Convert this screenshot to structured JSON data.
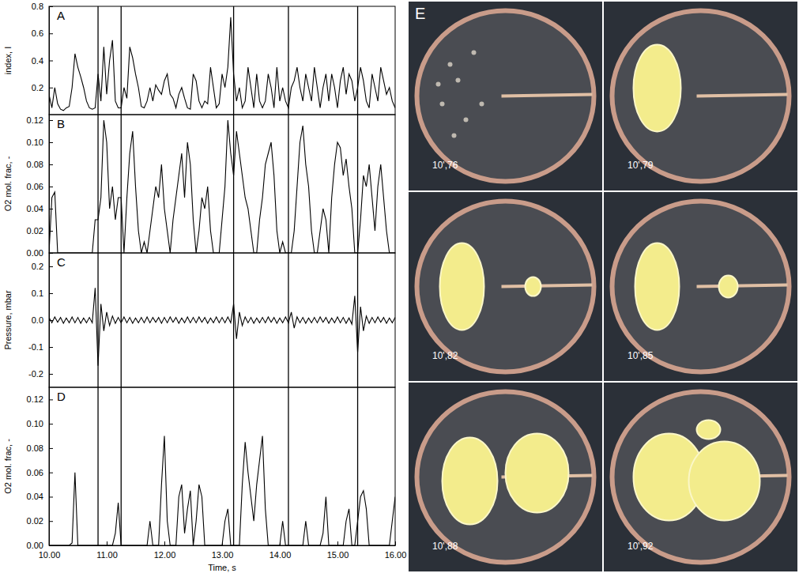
{
  "chart_data": [
    {
      "type": "line",
      "panel": "A",
      "ylabel": "index, I",
      "color": "#000000",
      "tick_labels": "y",
      "xlim": [
        10,
        16
      ],
      "ylim": [
        0,
        0.8
      ],
      "yticks": [
        0.2,
        0.4,
        0.6,
        0.8
      ],
      "vlines": [
        10.85,
        11.25,
        13.2,
        14.15,
        15.35
      ],
      "x": [
        10,
        10.05,
        10.1,
        10.15,
        10.2,
        10.25,
        10.3,
        10.35,
        10.4,
        10.45,
        10.5,
        10.55,
        10.6,
        10.65,
        10.7,
        10.75,
        10.8,
        10.85,
        10.9,
        10.95,
        11,
        11.05,
        11.1,
        11.15,
        11.2,
        11.25,
        11.3,
        11.35,
        11.4,
        11.45,
        11.5,
        11.55,
        11.6,
        11.65,
        11.7,
        11.75,
        11.8,
        11.85,
        11.9,
        11.95,
        12,
        12.05,
        12.1,
        12.15,
        12.2,
        12.25,
        12.3,
        12.35,
        12.4,
        12.45,
        12.5,
        12.55,
        12.6,
        12.65,
        12.7,
        12.75,
        12.8,
        12.85,
        12.9,
        12.95,
        13,
        13.05,
        13.1,
        13.15,
        13.2,
        13.25,
        13.3,
        13.35,
        13.4,
        13.45,
        13.5,
        13.55,
        13.6,
        13.65,
        13.7,
        13.75,
        13.8,
        13.85,
        13.9,
        13.95,
        14,
        14.05,
        14.1,
        14.15,
        14.2,
        14.25,
        14.3,
        14.35,
        14.4,
        14.45,
        14.5,
        14.55,
        14.6,
        14.65,
        14.7,
        14.75,
        14.8,
        14.85,
        14.9,
        14.95,
        15,
        15.05,
        15.1,
        15.15,
        15.2,
        15.25,
        15.3,
        15.35,
        15.4,
        15.45,
        15.5,
        15.55,
        15.6,
        15.65,
        15.7,
        15.75,
        15.8,
        15.85,
        15.9,
        15.95,
        16
      ],
      "values": [
        0.15,
        0.05,
        0.2,
        0.08,
        0.04,
        0.03,
        0.05,
        0.06,
        0.2,
        0.45,
        0.35,
        0.28,
        0.2,
        0.1,
        0.05,
        0.04,
        0.05,
        0.3,
        0.1,
        0.5,
        0.15,
        0.4,
        0.55,
        0.1,
        0.05,
        0.05,
        0.2,
        0.12,
        0.5,
        0.42,
        0.3,
        0.2,
        0.06,
        0.05,
        0.1,
        0.2,
        0.1,
        0.22,
        0.18,
        0.15,
        0.25,
        0.3,
        0.15,
        0.12,
        0.05,
        0.15,
        0.2,
        0.12,
        0.05,
        0.04,
        0.3,
        0.25,
        0.1,
        0.05,
        0.1,
        0.08,
        0.35,
        0.2,
        0.05,
        0.08,
        0.3,
        0.2,
        0.35,
        0.72,
        0.3,
        0.1,
        0.2,
        0.05,
        0.1,
        0.35,
        0.2,
        0.05,
        0.3,
        0.1,
        0.05,
        0.1,
        0.3,
        0.2,
        0.05,
        0.35,
        0.1,
        0.2,
        0.1,
        0.05,
        0.2,
        0.25,
        0.35,
        0.2,
        0.1,
        0.3,
        0.2,
        0.1,
        0.35,
        0.2,
        0.05,
        0.2,
        0.3,
        0.1,
        0.3,
        0.2,
        0.05,
        0.25,
        0.35,
        0.15,
        0.3,
        0.25,
        0.1,
        0.2,
        0.35,
        0.25,
        0.1,
        0.05,
        0.3,
        0.2,
        0.1,
        0.35,
        0.25,
        0.15,
        0.2,
        0.1,
        0.05
      ]
    },
    {
      "type": "line",
      "panel": "B",
      "ylabel": "O2 mol. frac, -",
      "color": "#000000",
      "tick_labels": "y",
      "xlim": [
        10,
        16
      ],
      "ylim": [
        0,
        0.125
      ],
      "yticks": [
        {
          "value": 0,
          "label": "0.00"
        },
        {
          "value": 0.02,
          "label": "0.02"
        },
        {
          "value": 0.04,
          "label": "0.04"
        },
        {
          "value": 0.06,
          "label": "0.06"
        },
        {
          "value": 0.08,
          "label": "0.08"
        },
        {
          "value": 0.1,
          "label": "0.10"
        },
        {
          "value": 0.12,
          "label": "0.12"
        }
      ],
      "vlines": [
        10.85,
        11.25,
        13.2,
        14.15,
        15.35
      ],
      "x": [
        10,
        10.05,
        10.1,
        10.15,
        10.2,
        10.25,
        10.3,
        10.35,
        10.4,
        10.45,
        10.5,
        10.55,
        10.6,
        10.65,
        10.7,
        10.75,
        10.8,
        10.85,
        10.9,
        10.95,
        11,
        11.05,
        11.1,
        11.15,
        11.2,
        11.25,
        11.3,
        11.35,
        11.4,
        11.45,
        11.5,
        11.55,
        11.6,
        11.65,
        11.7,
        11.75,
        11.8,
        11.85,
        11.9,
        11.95,
        12,
        12.05,
        12.1,
        12.15,
        12.2,
        12.25,
        12.3,
        12.35,
        12.4,
        12.45,
        12.5,
        12.55,
        12.6,
        12.65,
        12.7,
        12.75,
        12.8,
        12.85,
        12.9,
        12.95,
        13,
        13.05,
        13.1,
        13.15,
        13.2,
        13.25,
        13.3,
        13.35,
        13.4,
        13.45,
        13.5,
        13.55,
        13.6,
        13.65,
        13.7,
        13.75,
        13.8,
        13.85,
        13.9,
        13.95,
        14,
        14.05,
        14.1,
        14.15,
        14.2,
        14.25,
        14.3,
        14.35,
        14.4,
        14.45,
        14.5,
        14.55,
        14.6,
        14.65,
        14.7,
        14.75,
        14.8,
        14.85,
        14.9,
        14.95,
        15,
        15.05,
        15.1,
        15.15,
        15.2,
        15.25,
        15.3,
        15.35,
        15.4,
        15.45,
        15.5,
        15.55,
        15.6,
        15.65,
        15.7,
        15.75,
        15.8,
        15.85,
        15.9,
        15.95,
        16
      ],
      "values": [
        0,
        0.05,
        0.055,
        0,
        0,
        0,
        0,
        0,
        0,
        0,
        0,
        0,
        0,
        0,
        0,
        0,
        0.03,
        0.03,
        0.05,
        0.12,
        0.1,
        0.04,
        0.06,
        0.03,
        0.05,
        0.05,
        0,
        0.05,
        0.09,
        0.11,
        0.06,
        0.02,
        0,
        0.01,
        0,
        0.02,
        0.04,
        0.06,
        0.05,
        0.08,
        0.04,
        0.02,
        0,
        0.03,
        0.05,
        0.07,
        0.09,
        0.05,
        0.1,
        0.08,
        0.03,
        0,
        0.02,
        0.05,
        0.04,
        0.06,
        0.02,
        0,
        0,
        0,
        0.03,
        0.06,
        0.12,
        0.09,
        0.07,
        0.11,
        0.09,
        0.07,
        0.05,
        0.04,
        0.02,
        0,
        0,
        0.03,
        0.05,
        0.08,
        0.09,
        0.1,
        0.07,
        0.02,
        0,
        0.01,
        0,
        0,
        0,
        0.02,
        0.06,
        0.1,
        0.115,
        0.08,
        0.06,
        0.02,
        0,
        0,
        0.02,
        0.04,
        0.03,
        0,
        0.05,
        0.08,
        0.1,
        0.095,
        0.07,
        0.085,
        0.06,
        0.04,
        0,
        0,
        0.03,
        0.07,
        0.06,
        0.08,
        0.05,
        0.02,
        0.06,
        0.08,
        0.05,
        0.02,
        0,
        0,
        0
      ]
    },
    {
      "type": "line",
      "panel": "C",
      "ylabel": "Pressure, mbar",
      "color": "#000000",
      "tick_labels": "y",
      "xlim": [
        10,
        16
      ],
      "ylim": [
        -0.25,
        0.25
      ],
      "yticks": [
        -0.2,
        -0.1,
        {
          "value": 0,
          "label": "0.0"
        },
        0.1,
        0.2
      ],
      "vlines": [
        10.85,
        11.25,
        13.2,
        14.15,
        15.35
      ],
      "x": [
        10,
        10.05,
        10.1,
        10.15,
        10.2,
        10.25,
        10.3,
        10.35,
        10.4,
        10.45,
        10.5,
        10.55,
        10.6,
        10.65,
        10.7,
        10.75,
        10.8,
        10.85,
        10.9,
        10.95,
        11,
        11.05,
        11.1,
        11.15,
        11.2,
        11.25,
        11.3,
        11.35,
        11.4,
        11.45,
        11.5,
        11.55,
        11.6,
        11.65,
        11.7,
        11.75,
        11.8,
        11.85,
        11.9,
        11.95,
        12,
        12.05,
        12.1,
        12.15,
        12.2,
        12.25,
        12.3,
        12.35,
        12.4,
        12.45,
        12.5,
        12.55,
        12.6,
        12.65,
        12.7,
        12.75,
        12.8,
        12.85,
        12.9,
        12.95,
        13,
        13.05,
        13.1,
        13.15,
        13.2,
        13.25,
        13.3,
        13.35,
        13.4,
        13.45,
        13.5,
        13.55,
        13.6,
        13.65,
        13.7,
        13.75,
        13.8,
        13.85,
        13.9,
        13.95,
        14,
        14.05,
        14.1,
        14.15,
        14.2,
        14.25,
        14.3,
        14.35,
        14.4,
        14.45,
        14.5,
        14.55,
        14.6,
        14.65,
        14.7,
        14.75,
        14.8,
        14.85,
        14.9,
        14.95,
        15,
        15.05,
        15.1,
        15.15,
        15.2,
        15.25,
        15.3,
        15.35,
        15.4,
        15.45,
        15.5,
        15.55,
        15.6,
        15.65,
        15.7,
        15.75,
        15.8,
        15.85,
        15.9,
        15.95,
        16
      ],
      "values": [
        0.01,
        -0.01,
        0.012,
        -0.008,
        0.01,
        -0.012,
        0.008,
        -0.01,
        0.012,
        -0.01,
        0.01,
        -0.012,
        0.008,
        -0.01,
        0.01,
        -0.01,
        0.12,
        -0.17,
        0.06,
        -0.04,
        0.03,
        -0.02,
        0.015,
        -0.012,
        0.01,
        -0.01,
        0.012,
        -0.01,
        0.01,
        -0.012,
        0.008,
        -0.01,
        0.01,
        -0.01,
        0.012,
        -0.01,
        0.01,
        -0.008,
        0.01,
        -0.012,
        0.01,
        -0.01,
        0.012,
        -0.008,
        0.01,
        -0.012,
        0.008,
        -0.01,
        0.012,
        -0.01,
        0.01,
        -0.01,
        0.012,
        -0.008,
        0.01,
        -0.012,
        0.008,
        -0.01,
        0.012,
        -0.01,
        0.01,
        -0.01,
        0.012,
        -0.01,
        0.06,
        -0.07,
        0.03,
        -0.02,
        0.012,
        -0.01,
        0.01,
        -0.012,
        0.008,
        -0.01,
        0.01,
        -0.01,
        0.012,
        -0.008,
        0.01,
        -0.012,
        0.008,
        -0.01,
        0.012,
        -0.01,
        0.03,
        -0.03,
        0.012,
        -0.01,
        0.01,
        -0.012,
        0.008,
        -0.01,
        0.01,
        -0.01,
        0.012,
        -0.008,
        0.01,
        -0.012,
        0.008,
        -0.01,
        0.012,
        -0.01,
        0.01,
        -0.012,
        0.008,
        -0.015,
        0.09,
        -0.12,
        0.05,
        -0.04,
        0.015,
        -0.012,
        0.01,
        -0.01,
        0.012,
        -0.008,
        0.01,
        -0.012,
        0.008,
        -0.01,
        0.01
      ]
    },
    {
      "type": "line",
      "panel": "D",
      "ylabel": "O2 mol. frac, -",
      "xlabel": "Time, s",
      "color": "#000000",
      "xlim": [
        10,
        16
      ],
      "ylim": [
        0,
        0.13
      ],
      "xticks": [
        {
          "value": 10,
          "label": "10.00"
        },
        {
          "value": 11,
          "label": "11.00"
        },
        {
          "value": 12,
          "label": "12.00"
        },
        {
          "value": 13,
          "label": "13.00"
        },
        {
          "value": 14,
          "label": "14.00"
        },
        {
          "value": 15,
          "label": "15.00"
        },
        {
          "value": 16,
          "label": "16.00"
        }
      ],
      "yticks": [
        {
          "value": 0,
          "label": "0.00"
        },
        {
          "value": 0.02,
          "label": "0.02"
        },
        {
          "value": 0.04,
          "label": "0.04"
        },
        {
          "value": 0.06,
          "label": "0.06"
        },
        {
          "value": 0.08,
          "label": "0.08"
        },
        {
          "value": 0.1,
          "label": "0.10"
        },
        {
          "value": 0.12,
          "label": "0.12"
        }
      ],
      "vlines": [
        10.85,
        11.25,
        13.2,
        14.15,
        15.35
      ],
      "x": [
        10,
        10.05,
        10.1,
        10.15,
        10.2,
        10.25,
        10.3,
        10.35,
        10.4,
        10.45,
        10.5,
        10.55,
        10.6,
        10.65,
        10.7,
        10.75,
        10.8,
        10.85,
        10.9,
        10.95,
        11,
        11.05,
        11.1,
        11.15,
        11.2,
        11.25,
        11.3,
        11.35,
        11.4,
        11.45,
        11.5,
        11.55,
        11.6,
        11.65,
        11.7,
        11.75,
        11.8,
        11.85,
        11.9,
        11.95,
        12,
        12.05,
        12.1,
        12.15,
        12.2,
        12.25,
        12.3,
        12.35,
        12.4,
        12.45,
        12.5,
        12.55,
        12.6,
        12.65,
        12.7,
        12.75,
        12.8,
        12.85,
        12.9,
        12.95,
        13,
        13.05,
        13.1,
        13.15,
        13.2,
        13.25,
        13.3,
        13.35,
        13.4,
        13.45,
        13.5,
        13.55,
        13.6,
        13.65,
        13.7,
        13.75,
        13.8,
        13.85,
        13.9,
        13.95,
        14,
        14.05,
        14.1,
        14.15,
        14.2,
        14.25,
        14.3,
        14.35,
        14.4,
        14.45,
        14.5,
        14.55,
        14.6,
        14.65,
        14.7,
        14.75,
        14.8,
        14.85,
        14.9,
        14.95,
        15,
        15.05,
        15.1,
        15.15,
        15.2,
        15.25,
        15.3,
        15.35,
        15.4,
        15.45,
        15.5,
        15.55,
        15.6,
        15.65,
        15.7,
        15.75,
        15.8,
        15.85,
        15.9,
        15.95,
        16
      ],
      "values": [
        0,
        0,
        0,
        0,
        0,
        0,
        0,
        0,
        0.002,
        0.06,
        0,
        0,
        0,
        0,
        0,
        0,
        0,
        0,
        0,
        0,
        0,
        0,
        0,
        0.01,
        0.035,
        0,
        0,
        0,
        0,
        0,
        0,
        0,
        0,
        0,
        0,
        0.02,
        0,
        0,
        0,
        0.05,
        0.09,
        0.02,
        0,
        0,
        0,
        0.04,
        0.05,
        0.01,
        0.03,
        0.045,
        0,
        0.02,
        0.05,
        0.04,
        0,
        0,
        0,
        0,
        0,
        0,
        0,
        0.02,
        0.03,
        0,
        0,
        0,
        0,
        0.05,
        0.085,
        0.06,
        0.04,
        0.02,
        0.05,
        0.07,
        0.09,
        0.03,
        0,
        0,
        0,
        0,
        0,
        0.02,
        0,
        0,
        0,
        0,
        0,
        0,
        0,
        0.02,
        0,
        0,
        0,
        0,
        0,
        0.01,
        0.04,
        0,
        0,
        0,
        0,
        0,
        0,
        0.02,
        0.03,
        0,
        0,
        0.02,
        0.04,
        0.045,
        0.03,
        0,
        0,
        0,
        0,
        0,
        0,
        0,
        0,
        0.02,
        0.04
      ]
    }
  ],
  "photo_panel": {
    "label": "E",
    "timestamps": [
      "10',76",
      "10',79",
      "10',82",
      "10',85",
      "10',88",
      "10',92"
    ]
  }
}
